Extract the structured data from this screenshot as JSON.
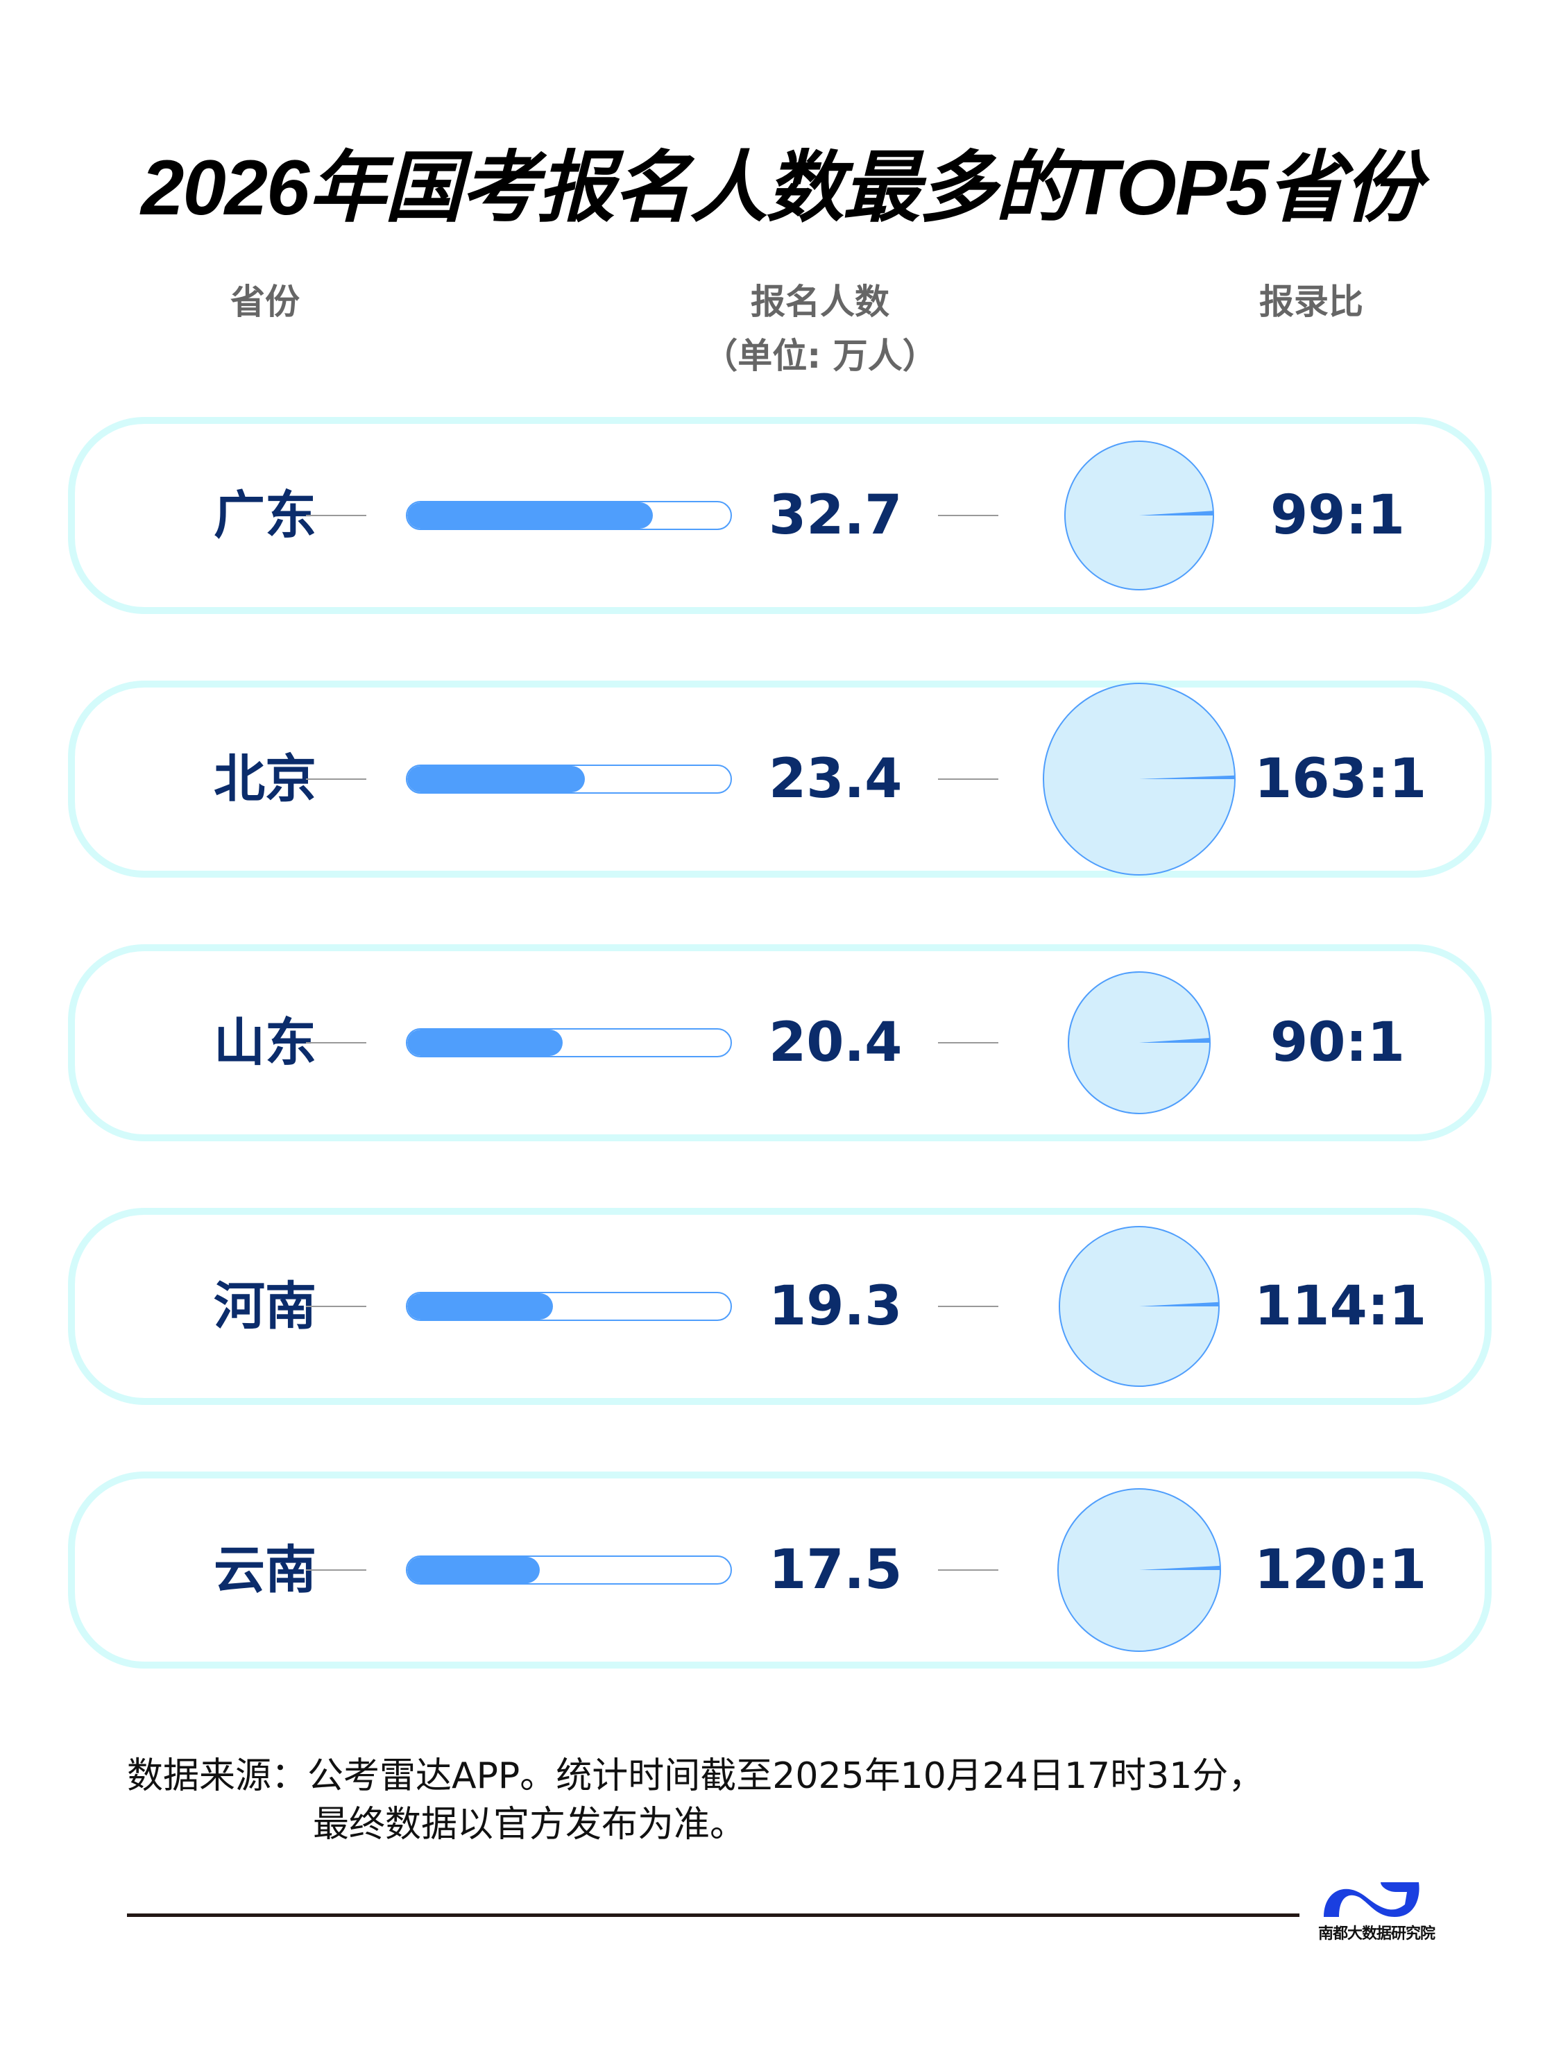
{
  "title": "2026年国考报名人数最多的TOP5省份",
  "headers": {
    "province": "省份",
    "applicants": "报名人数",
    "applicants_unit": "（单位: 万人）",
    "ratio": "报录比"
  },
  "rows": [
    {
      "province": "广东",
      "applicants": "32.7",
      "ratio": "99:1",
      "bar_pct": 76,
      "pie_r": 107
    },
    {
      "province": "北京",
      "applicants": "23.4",
      "ratio": "163:1",
      "bar_pct": 55,
      "pie_r": 138
    },
    {
      "province": "山东",
      "applicants": "20.4",
      "ratio": "90:1",
      "bar_pct": 48,
      "pie_r": 102
    },
    {
      "province": "河南",
      "applicants": "19.3",
      "ratio": "114:1",
      "bar_pct": 45,
      "pie_r": 115
    },
    {
      "province": "云南",
      "applicants": "17.5",
      "ratio": "120:1",
      "bar_pct": 41,
      "pie_r": 117
    }
  ],
  "footer": {
    "source_line1": "数据来源：公考雷达APP。统计时间截至2025年10月24日17时31分，",
    "source_line2": "最终数据以官方发布为准。",
    "logo_text": "南都大数据研究院"
  },
  "colors": {
    "title": "#000000",
    "header": "#666666",
    "value_text": "#0b2c6b",
    "bar": "#4f9efc",
    "pie_fill": "#d3eefc",
    "pie_stroke": "#4f9efc",
    "card_border": "#d4fbfb",
    "logo": "#1a3fe0"
  },
  "chart_data": {
    "type": "table",
    "title": "2026年国考报名人数最多的TOP5省份",
    "columns": [
      "省份",
      "报名人数（单位: 万人）",
      "报录比"
    ],
    "categories": [
      "广东",
      "北京",
      "山东",
      "河南",
      "云南"
    ],
    "series": [
      {
        "name": "报名人数（万人）",
        "type": "bar",
        "values": [
          32.7,
          23.4,
          20.4,
          19.3,
          17.5
        ]
      },
      {
        "name": "报录比",
        "type": "pie",
        "values": [
          "99:1",
          "163:1",
          "90:1",
          "114:1",
          "120:1"
        ],
        "numeric": [
          99,
          163,
          90,
          114,
          120
        ]
      }
    ],
    "source": "公考雷达APP，统计时间截至2025年10月24日17时31分"
  }
}
